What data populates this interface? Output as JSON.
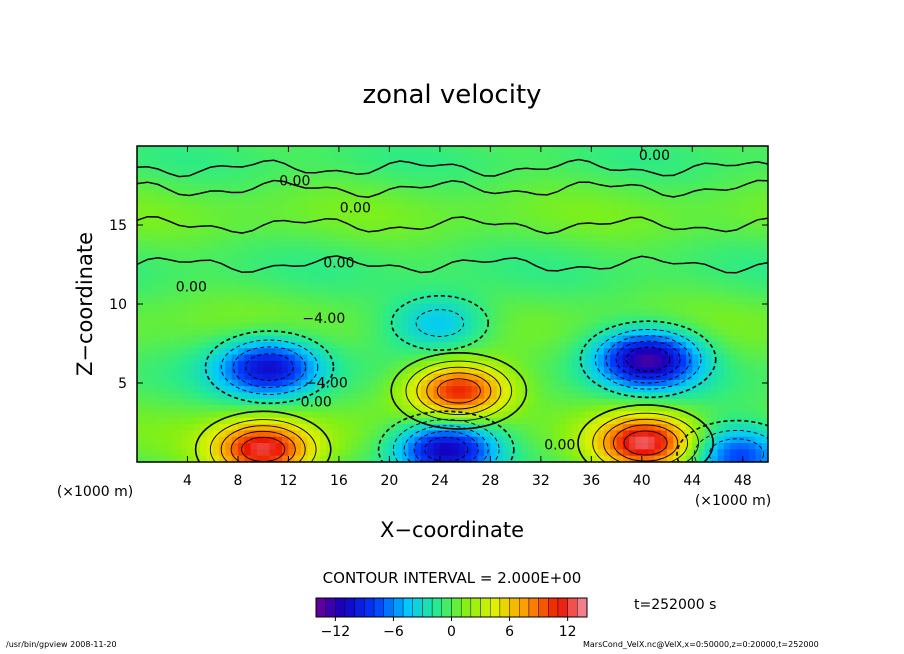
{
  "chart_data": {
    "type": "heatmap",
    "title": "zonal velocity",
    "xlabel": "X−coordinate",
    "ylabel": "Z−coordinate",
    "x_unit": "(×1000 m)",
    "y_unit": "(×1000 m)",
    "xlim": [
      0,
      50
    ],
    "ylim": [
      0,
      20
    ],
    "x_ticks": [
      4,
      8,
      12,
      16,
      20,
      24,
      28,
      32,
      36,
      40,
      44,
      48
    ],
    "y_ticks": [
      5,
      10,
      15
    ],
    "x_tick_labels": [
      "4",
      "8",
      "12",
      "16",
      "20",
      "24",
      "28",
      "32",
      "36",
      "40",
      "44",
      "48"
    ],
    "y_tick_labels": [
      "5",
      "10",
      "15"
    ],
    "contour_interval_text": "CONTOUR INTERVAL = 2.000E+00",
    "time_label": "t=252000 s",
    "colorbar": {
      "min": -14,
      "max": 14,
      "ticks": [
        -12,
        -6,
        0,
        6,
        12
      ],
      "tick_labels": [
        "−12",
        "−6",
        "0",
        "6",
        "12"
      ]
    },
    "contour_labels": [
      {
        "text": "0.00",
        "x": 41.0,
        "y": 19.1
      },
      {
        "text": "0.00",
        "x": 12.5,
        "y": 17.5
      },
      {
        "text": "0.00",
        "x": 17.3,
        "y": 15.8
      },
      {
        "text": "0.00",
        "x": 16.0,
        "y": 12.3
      },
      {
        "text": "0.00",
        "x": 4.3,
        "y": 10.8
      },
      {
        "text": "−4.00",
        "x": 14.8,
        "y": 8.8
      },
      {
        "text": "−4.00",
        "x": 15.0,
        "y": 4.7
      },
      {
        "text": "0.00",
        "x": 14.2,
        "y": 3.5
      },
      {
        "text": "0.00",
        "x": 33.5,
        "y": 0.8
      }
    ],
    "features": [
      {
        "kind": "min",
        "x": 10.5,
        "y": 6.0,
        "value": -10
      },
      {
        "kind": "min",
        "x": 40.5,
        "y": 6.5,
        "value": -12
      },
      {
        "kind": "min",
        "x": 24.5,
        "y": 0.8,
        "value": -12
      },
      {
        "kind": "min",
        "x": 47.5,
        "y": 0.5,
        "value": -8
      },
      {
        "kind": "max",
        "x": 25.5,
        "y": 4.5,
        "value": 12
      },
      {
        "kind": "max",
        "x": 10.0,
        "y": 0.8,
        "value": 12
      },
      {
        "kind": "max",
        "x": 40.3,
        "y": 1.2,
        "value": 12
      },
      {
        "kind": "min",
        "x": 24.0,
        "y": 8.8,
        "value": -5
      }
    ]
  },
  "footer": {
    "left": "/usr/bin/gpview   2008-11-20",
    "right": "MarsCond_VelX.nc@VelX,x=0:50000,z=0:20000,t=252000"
  }
}
